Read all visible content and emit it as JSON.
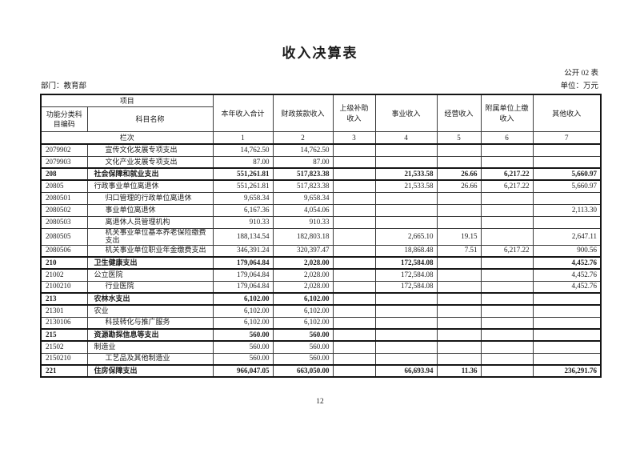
{
  "page": {
    "title": "收入决算表",
    "table_code": "公开 02 表",
    "department": "部门：教育部",
    "unit": "单位：万元",
    "page_number": "12"
  },
  "table": {
    "header": {
      "item_group": "项目",
      "code_label": "功能分类科目编码",
      "name_label": "科目名称",
      "lanci_label": "栏次",
      "columns": [
        "本年收入合计",
        "财政拨款收入",
        "上级补助收入",
        "事业收入",
        "经营收入",
        "附属单位上缴收入",
        "其他收入"
      ],
      "column_numbers": [
        "1",
        "2",
        "3",
        "4",
        "5",
        "6",
        "7"
      ]
    },
    "rows": [
      {
        "code": "2079902",
        "name": "宣传文化发展专项支出",
        "indent": true,
        "bold": false,
        "values": [
          "14,762.50",
          "14,762.50",
          "",
          "",
          "",
          "",
          ""
        ]
      },
      {
        "code": "2079903",
        "name": "文化产业发展专项支出",
        "indent": true,
        "bold": false,
        "values": [
          "87.00",
          "87.00",
          "",
          "",
          "",
          "",
          ""
        ]
      },
      {
        "code": "208",
        "name": "社会保障和就业支出",
        "indent": false,
        "bold": true,
        "values": [
          "551,261.81",
          "517,823.38",
          "",
          "21,533.58",
          "26.66",
          "6,217.22",
          "5,660.97"
        ]
      },
      {
        "code": "20805",
        "name": "行政事业单位离退休",
        "indent": false,
        "bold": false,
        "values": [
          "551,261.81",
          "517,823.38",
          "",
          "21,533.58",
          "26.66",
          "6,217.22",
          "5,660.97"
        ]
      },
      {
        "code": "2080501",
        "name": "归口管理的行政单位离退休",
        "indent": true,
        "bold": false,
        "values": [
          "9,658.34",
          "9,658.34",
          "",
          "",
          "",
          "",
          ""
        ]
      },
      {
        "code": "2080502",
        "name": "事业单位离退休",
        "indent": true,
        "bold": false,
        "values": [
          "6,167.36",
          "4,054.06",
          "",
          "",
          "",
          "",
          "2,113.30"
        ]
      },
      {
        "code": "2080503",
        "name": "离退休人员管理机构",
        "indent": true,
        "bold": false,
        "values": [
          "910.33",
          "910.33",
          "",
          "",
          "",
          "",
          ""
        ]
      },
      {
        "code": "2080505",
        "name": "机关事业单位基本养老保险缴费支出",
        "indent": true,
        "bold": false,
        "values": [
          "188,134.54",
          "182,803.18",
          "",
          "2,665.10",
          "19.15",
          "",
          "2,647.11"
        ]
      },
      {
        "code": "2080506",
        "name": "机关事业单位职业年金缴费支出",
        "indent": true,
        "bold": false,
        "values": [
          "346,391.24",
          "320,397.47",
          "",
          "18,868.48",
          "7.51",
          "6,217.22",
          "900.56"
        ]
      },
      {
        "code": "210",
        "name": "卫生健康支出",
        "indent": false,
        "bold": true,
        "values": [
          "179,064.84",
          "2,028.00",
          "",
          "172,584.08",
          "",
          "",
          "4,452.76"
        ]
      },
      {
        "code": "21002",
        "name": "公立医院",
        "indent": false,
        "bold": false,
        "values": [
          "179,064.84",
          "2,028.00",
          "",
          "172,584.08",
          "",
          "",
          "4,452.76"
        ]
      },
      {
        "code": "2100210",
        "name": "行业医院",
        "indent": true,
        "bold": false,
        "values": [
          "179,064.84",
          "2,028.00",
          "",
          "172,584.08",
          "",
          "",
          "4,452.76"
        ]
      },
      {
        "code": "213",
        "name": "农林水支出",
        "indent": false,
        "bold": true,
        "values": [
          "6,102.00",
          "6,102.00",
          "",
          "",
          "",
          "",
          ""
        ]
      },
      {
        "code": "21301",
        "name": "农业",
        "indent": false,
        "bold": false,
        "values": [
          "6,102.00",
          "6,102.00",
          "",
          "",
          "",
          "",
          ""
        ]
      },
      {
        "code": "2130106",
        "name": "科技转化与推广服务",
        "indent": true,
        "bold": false,
        "values": [
          "6,102.00",
          "6,102.00",
          "",
          "",
          "",
          "",
          ""
        ]
      },
      {
        "code": "215",
        "name": "资源勘探信息等支出",
        "indent": false,
        "bold": true,
        "values": [
          "560.00",
          "560.00",
          "",
          "",
          "",
          "",
          ""
        ]
      },
      {
        "code": "21502",
        "name": "制造业",
        "indent": false,
        "bold": false,
        "values": [
          "560.00",
          "560.00",
          "",
          "",
          "",
          "",
          ""
        ]
      },
      {
        "code": "2150210",
        "name": "工艺品及其他制造业",
        "indent": true,
        "bold": false,
        "values": [
          "560.00",
          "560.00",
          "",
          "",
          "",
          "",
          ""
        ]
      },
      {
        "code": "221",
        "name": "住房保障支出",
        "indent": false,
        "bold": true,
        "values": [
          "966,047.05",
          "663,050.00",
          "",
          "66,693.94",
          "11.36",
          "",
          "236,291.76"
        ]
      }
    ]
  }
}
